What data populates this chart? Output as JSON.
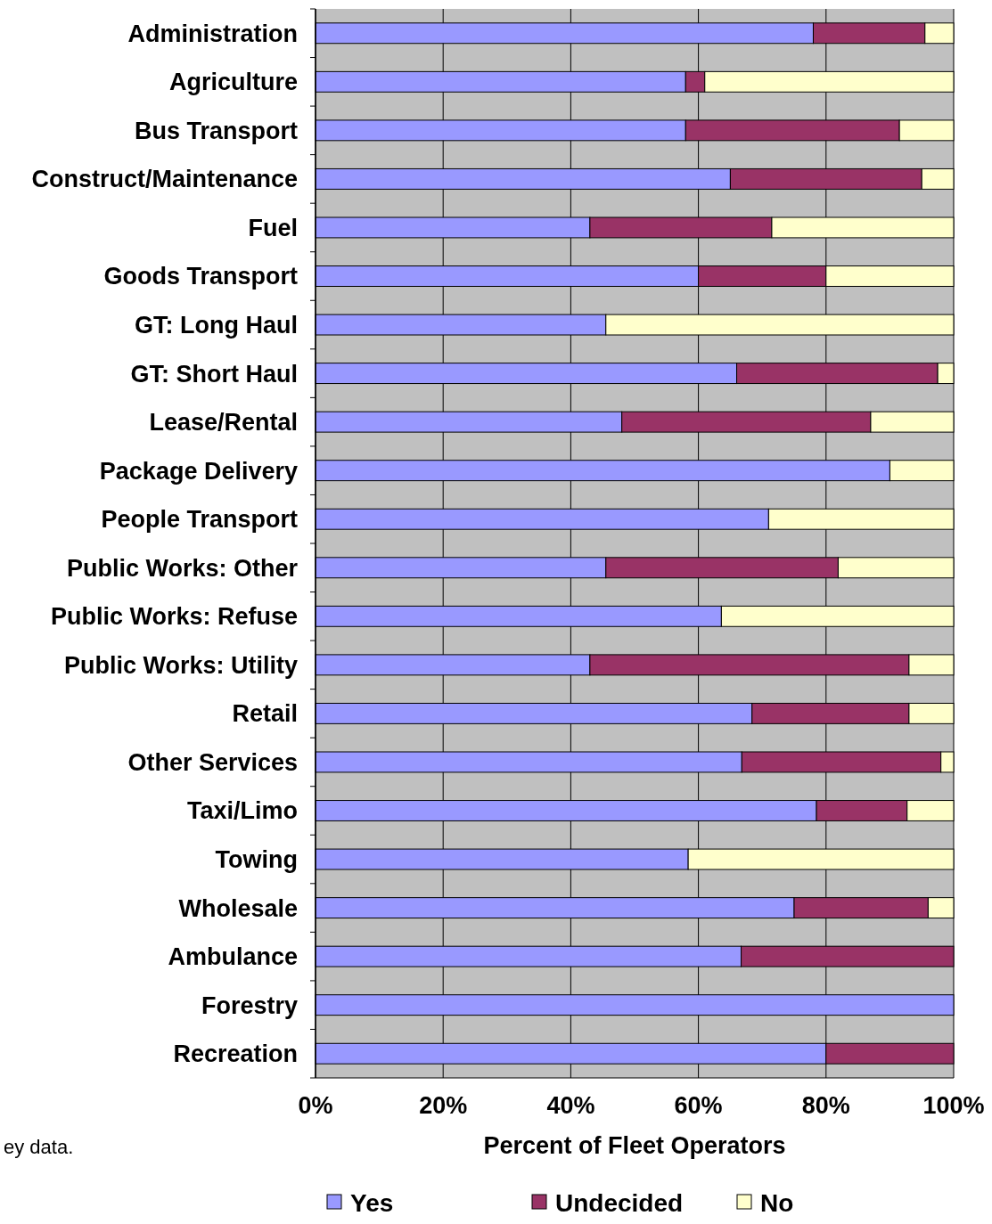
{
  "chart_data": {
    "type": "bar",
    "orientation": "horizontal",
    "stacked": true,
    "categories": [
      "Administration",
      "Agriculture",
      "Bus Transport",
      "Construct/Maintenance",
      "Fuel",
      "Goods Transport",
      "GT: Long Haul",
      "GT: Short Haul",
      "Lease/Rental",
      "Package Delivery",
      "People Transport",
      "Public Works: Other",
      "Public Works: Refuse",
      "Public Works: Utility",
      "Retail",
      "Other Services",
      "Taxi/Limo",
      "Towing",
      "Wholesale",
      "Ambulance",
      "Forestry",
      "Recreation"
    ],
    "series": [
      {
        "name": "Yes",
        "color": "#9999ff",
        "values": [
          78,
          58,
          58,
          65,
          43,
          60,
          45.5,
          66,
          48,
          90,
          71,
          45.5,
          63.6,
          43,
          68.4,
          66.8,
          78.5,
          58.4,
          75,
          66.7,
          100,
          80
        ]
      },
      {
        "name": "Undecided",
        "color": "#993366",
        "values": [
          17.5,
          3,
          33.5,
          30,
          28.5,
          20,
          0,
          31.5,
          39,
          0,
          0,
          36.4,
          0,
          50,
          24.6,
          31.2,
          14.2,
          0,
          21,
          33.3,
          0,
          20
        ]
      },
      {
        "name": "No",
        "color": "#ffffcc",
        "values": [
          4.5,
          39,
          8.5,
          5,
          28.5,
          20,
          54.5,
          2.5,
          13,
          10,
          29,
          18.1,
          36.4,
          7,
          7,
          2,
          7.3,
          41.6,
          4,
          0,
          0,
          0
        ]
      }
    ],
    "xlim": [
      0,
      100
    ],
    "xticks": [
      {
        "value": 0,
        "label": "0%"
      },
      {
        "value": 20,
        "label": "20%"
      },
      {
        "value": 40,
        "label": "40%"
      },
      {
        "value": 60,
        "label": "60%"
      },
      {
        "value": 80,
        "label": "80%"
      },
      {
        "value": 100,
        "label": "100%"
      }
    ],
    "xlabel": "Percent of Fleet Operators",
    "grid": "x",
    "legend": "bottom",
    "annotations": [
      "ey data."
    ]
  }
}
